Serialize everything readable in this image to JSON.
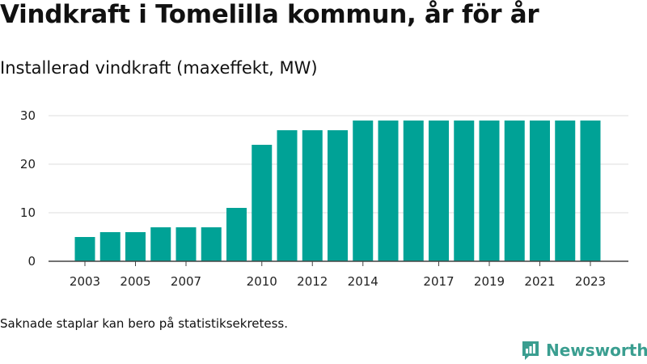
{
  "title": "Vindkraft i Tomelilla kommun, år för år",
  "subtitle": "Installerad vindkraft (maxeffekt, MW)",
  "footnote": "Saknade staplar kan bero på statistiksekretess.",
  "brand": {
    "name": "Newsworthy",
    "icon": "newsworthy-logo-icon"
  },
  "colors": {
    "bar": "#00a296",
    "grid": "#dcdcdc",
    "axis": "#444444",
    "brand": "#3a9e90"
  },
  "chart_data": {
    "type": "bar",
    "categories": [
      "2003",
      "2004",
      "2005",
      "2006",
      "2007",
      "2008",
      "2009",
      "2010",
      "2011",
      "2012",
      "2013",
      "2014",
      "2015",
      "2016",
      "2017",
      "2018",
      "2019",
      "2020",
      "2021",
      "2022",
      "2023"
    ],
    "values": [
      5,
      6,
      6,
      7,
      7,
      7,
      11,
      24,
      27,
      27,
      27,
      29,
      29,
      29,
      29,
      29,
      29,
      29,
      29,
      29,
      29
    ],
    "tick_labels_x": [
      "2003",
      "2005",
      "2007",
      "2010",
      "2012",
      "2014",
      "2017",
      "2019",
      "2021",
      "2023"
    ],
    "yticks": [
      0,
      10,
      20,
      30
    ],
    "ylim": [
      0,
      32
    ],
    "grid": true,
    "legend": "none"
  }
}
